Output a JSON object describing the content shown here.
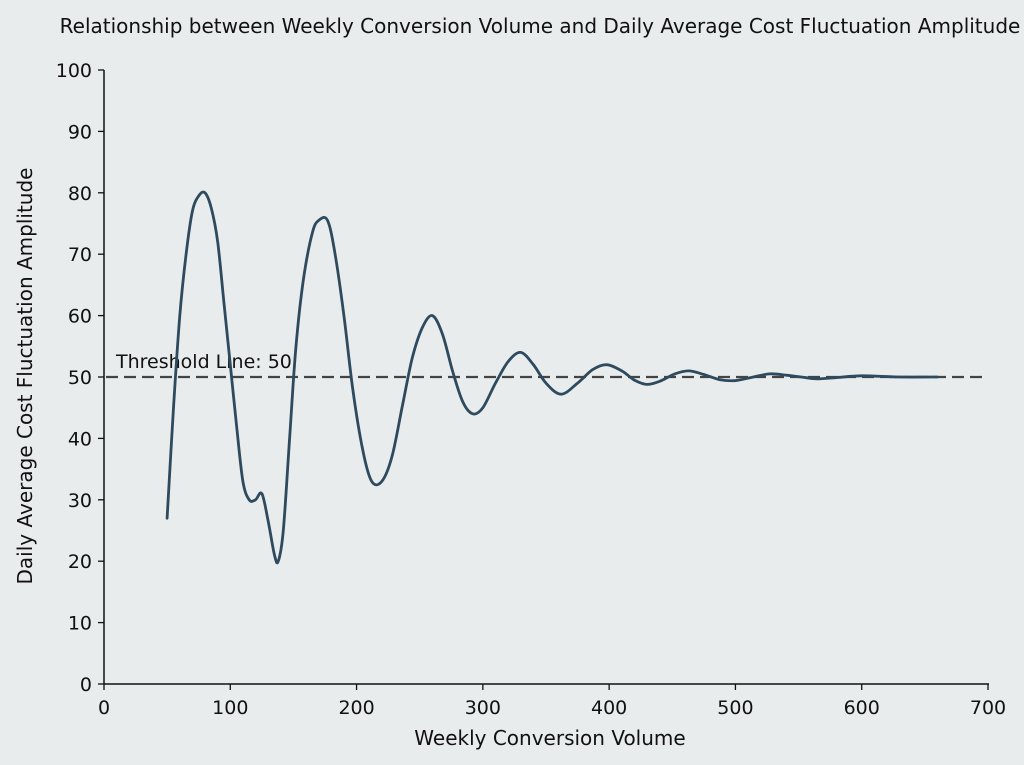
{
  "chart_data": {
    "type": "line",
    "title": "Relationship between Weekly Conversion Volume and Daily Average Cost Fluctuation Amplitude",
    "xlabel": "Weekly Conversion Volume",
    "ylabel": "Daily Average Cost Fluctuation Amplitude",
    "xlim": [
      0,
      700
    ],
    "ylim": [
      0,
      100
    ],
    "xticks": [
      0,
      100,
      200,
      300,
      400,
      500,
      600,
      700
    ],
    "yticks": [
      0,
      10,
      20,
      30,
      40,
      50,
      60,
      70,
      80,
      90,
      100
    ],
    "grid": false,
    "series": [
      {
        "color": "#2e4a5e",
        "x": [
          50,
          55,
          60,
          65,
          70,
          75,
          80,
          85,
          90,
          95,
          100,
          105,
          110,
          115,
          120,
          125,
          130,
          135,
          138,
          142,
          147,
          152,
          158,
          165,
          170,
          177,
          183,
          190,
          197,
          205,
          212,
          220,
          228,
          236,
          244,
          252,
          260,
          268,
          276,
          284,
          292,
          300,
          310,
          320,
          330,
          340,
          350,
          362,
          375,
          387,
          398,
          410,
          420,
          430,
          440,
          452,
          463,
          475,
          487,
          499,
          512,
          527,
          540,
          552,
          565,
          580,
          600,
          630,
          660
        ],
        "y": [
          27,
          45,
          60,
          70,
          77,
          79.5,
          80,
          77.5,
          72,
          62,
          52,
          42,
          33,
          30,
          30,
          31,
          26.5,
          21,
          20,
          25,
          40,
          55,
          66,
          73.5,
          75.5,
          75.5,
          70,
          60,
          48,
          38,
          33,
          33,
          37,
          45,
          53,
          58,
          60,
          57,
          51,
          46,
          44,
          45,
          49,
          52.5,
          54,
          52,
          49,
          47.2,
          49,
          51.2,
          52,
          51,
          49.5,
          48.8,
          49.3,
          50.5,
          51,
          50.4,
          49.6,
          49.4,
          49.9,
          50.5,
          50.3,
          50,
          49.7,
          49.9,
          50.2,
          50,
          50
        ]
      }
    ],
    "threshold": {
      "value": 50,
      "label": "Threshold Line: 50",
      "color": "#444444"
    }
  }
}
